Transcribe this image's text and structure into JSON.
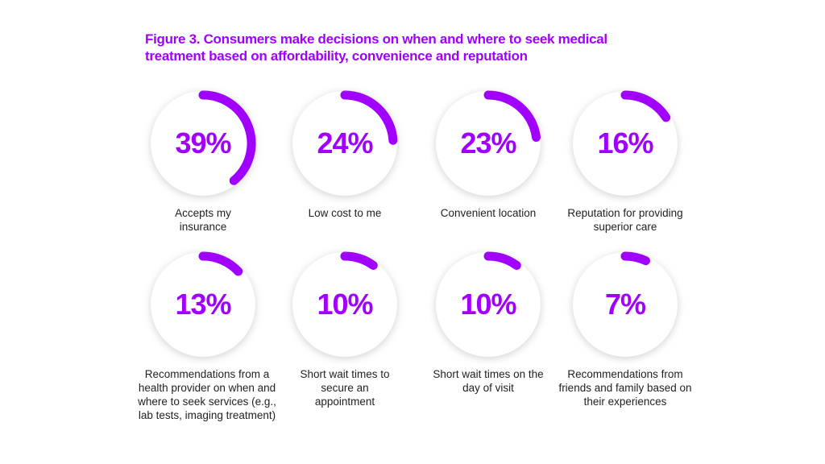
{
  "chart_data": {
    "type": "radial-progress",
    "title": "Figure 3. Consumers make decisions on when and where to seek medical treatment based on affordability, convenience and reputation",
    "accent_color": "#a100ff",
    "items": [
      {
        "value": 39,
        "value_label": "39%",
        "label": "Accepts my insurance"
      },
      {
        "value": 24,
        "value_label": "24%",
        "label": "Low cost to me"
      },
      {
        "value": 23,
        "value_label": "23%",
        "label": "Convenient location"
      },
      {
        "value": 16,
        "value_label": "16%",
        "label": "Reputation for providing superior care"
      },
      {
        "value": 13,
        "value_label": "13%",
        "label": "Recommendations from a health provider on when and where to seek services (e.g., lab tests, imaging treatment)"
      },
      {
        "value": 10,
        "value_label": "10%",
        "label": "Short wait times to secure an appointment"
      },
      {
        "value": 10,
        "value_label": "10%",
        "label": "Short wait times on the day of visit"
      },
      {
        "value": 7,
        "value_label": "7%",
        "label": "Recommendations from friends and family based on their experiences"
      }
    ]
  }
}
